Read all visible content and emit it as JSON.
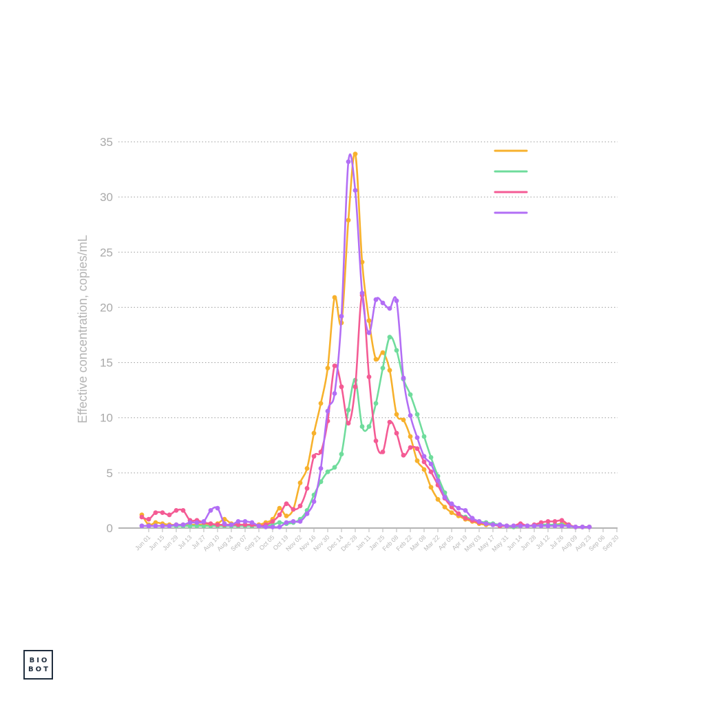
{
  "chart_data": {
    "type": "line",
    "title": "",
    "xlabel": "",
    "ylabel": "Effective concentration, copies/mL",
    "ylim": [
      0,
      35
    ],
    "yticks": [
      0,
      5,
      10,
      15,
      20,
      25,
      30,
      35
    ],
    "grid": true,
    "legend_position": "top-right",
    "x_tick_labels": [
      "Jun 01",
      "Jun 15",
      "Jun 29",
      "Jul 13",
      "Jul 27",
      "Aug 10",
      "Aug 24",
      "Sep 07",
      "Sep 21",
      "Oct 05",
      "Oct 19",
      "Nov 02",
      "Nov 16",
      "Nov 30",
      "Dec 14",
      "Dec 28",
      "Jan 11",
      "Jan 25",
      "Feb 08",
      "Feb 22",
      "Mar 08",
      "Mar 22",
      "Apr 05",
      "Apr 19",
      "May 03",
      "May 17",
      "May 31",
      "Jun 14",
      "Jun 28",
      "Jul 12",
      "Jul 26",
      "Aug 09",
      "Aug 23",
      "Sep 06",
      "Sep 20"
    ],
    "x_unit": "weekly index (0 = Jun 01, 1 step = 1 week)",
    "series": [
      {
        "name": "",
        "color": "#f7b12c",
        "points": [
          [
            0,
            1.2
          ],
          [
            1,
            0.3
          ],
          [
            2,
            0.5
          ],
          [
            3,
            0.4
          ],
          [
            4,
            0.3
          ],
          [
            5,
            0.3
          ],
          [
            6,
            0.3
          ],
          [
            7,
            0.3
          ],
          [
            8,
            0.3
          ],
          [
            9,
            0.3
          ],
          [
            10,
            0.3
          ],
          [
            11,
            0.4
          ],
          [
            12,
            0.8
          ],
          [
            13,
            0.4
          ],
          [
            14,
            0.3
          ],
          [
            15,
            0.3
          ],
          [
            16,
            0.2
          ],
          [
            17,
            0.3
          ],
          [
            18,
            0.5
          ],
          [
            19,
            0.8
          ],
          [
            20,
            1.8
          ],
          [
            21,
            1.1
          ],
          [
            22,
            1.7
          ],
          [
            23,
            4.1
          ],
          [
            24,
            5.4
          ],
          [
            25,
            8.6
          ],
          [
            26,
            11.3
          ],
          [
            27,
            14.5
          ],
          [
            28,
            20.9
          ],
          [
            29,
            18.6
          ],
          [
            30,
            27.9
          ],
          [
            31,
            33.9
          ],
          [
            32,
            24.1
          ],
          [
            33,
            18.8
          ],
          [
            34,
            15.3
          ],
          [
            35,
            15.9
          ],
          [
            36,
            14.3
          ],
          [
            37,
            10.3
          ],
          [
            38,
            9.8
          ],
          [
            39,
            8.3
          ],
          [
            40,
            6.1
          ],
          [
            41,
            5.3
          ],
          [
            42,
            3.7
          ],
          [
            43,
            2.6
          ],
          [
            44,
            1.9
          ],
          [
            45,
            1.4
          ],
          [
            46,
            1.1
          ],
          [
            47,
            0.8
          ],
          [
            48,
            0.6
          ],
          [
            49,
            0.4
          ],
          [
            50,
            0.3
          ],
          [
            51,
            0.3
          ],
          [
            52,
            0.2
          ],
          [
            53,
            0.2
          ],
          [
            54,
            0.1
          ],
          [
            55,
            0.2
          ],
          [
            56,
            0.2
          ],
          [
            57,
            0.2
          ],
          [
            58,
            0.3
          ],
          [
            59,
            0.3
          ],
          [
            60,
            0.3
          ],
          [
            61,
            0.4
          ],
          [
            62,
            0.3
          ],
          [
            63,
            0.1
          ],
          [
            64,
            0.1
          ],
          [
            65,
            0.1
          ]
        ]
      },
      {
        "name": "",
        "color": "#6fdc9c",
        "points": [
          [
            0,
            0.2
          ],
          [
            1,
            0.2
          ],
          [
            2,
            0.2
          ],
          [
            3,
            0.2
          ],
          [
            4,
            0.2
          ],
          [
            5,
            0.2
          ],
          [
            6,
            0.2
          ],
          [
            7,
            0.2
          ],
          [
            8,
            0.2
          ],
          [
            9,
            0.2
          ],
          [
            10,
            0.2
          ],
          [
            11,
            0.2
          ],
          [
            12,
            0.2
          ],
          [
            13,
            0.2
          ],
          [
            14,
            0.2
          ],
          [
            15,
            0.2
          ],
          [
            16,
            0.2
          ],
          [
            17,
            0.2
          ],
          [
            18,
            0.2
          ],
          [
            19,
            0.3
          ],
          [
            20,
            0.5
          ],
          [
            21,
            0.4
          ],
          [
            22,
            0.5
          ],
          [
            23,
            0.8
          ],
          [
            24,
            1.6
          ],
          [
            25,
            3.0
          ],
          [
            26,
            4.2
          ],
          [
            27,
            5.1
          ],
          [
            28,
            5.5
          ],
          [
            29,
            6.7
          ],
          [
            30,
            10.7
          ],
          [
            31,
            13.4
          ],
          [
            32,
            9.2
          ],
          [
            33,
            9.2
          ],
          [
            34,
            11.3
          ],
          [
            35,
            14.5
          ],
          [
            36,
            17.3
          ],
          [
            37,
            16.1
          ],
          [
            38,
            13.5
          ],
          [
            39,
            12.1
          ],
          [
            40,
            10.3
          ],
          [
            41,
            8.3
          ],
          [
            42,
            6.4
          ],
          [
            43,
            4.7
          ],
          [
            44,
            3.2
          ],
          [
            45,
            2.0
          ],
          [
            46,
            1.3
          ],
          [
            47,
            1.0
          ],
          [
            48,
            0.8
          ],
          [
            49,
            0.6
          ],
          [
            50,
            0.5
          ],
          [
            51,
            0.4
          ],
          [
            52,
            0.3
          ],
          [
            53,
            0.2
          ],
          [
            54,
            0.1
          ],
          [
            55,
            0.2
          ],
          [
            56,
            0.2
          ],
          [
            57,
            0.2
          ],
          [
            58,
            0.3
          ],
          [
            59,
            0.3
          ],
          [
            60,
            0.3
          ],
          [
            61,
            0.3
          ],
          [
            62,
            0.2
          ],
          [
            63,
            0.1
          ],
          [
            64,
            0.1
          ],
          [
            65,
            0.1
          ]
        ]
      },
      {
        "name": "",
        "color": "#f45b94",
        "points": [
          [
            0,
            1.0
          ],
          [
            1,
            0.8
          ],
          [
            2,
            1.4
          ],
          [
            3,
            1.4
          ],
          [
            4,
            1.2
          ],
          [
            5,
            1.6
          ],
          [
            6,
            1.6
          ],
          [
            7,
            0.7
          ],
          [
            8,
            0.7
          ],
          [
            9,
            0.5
          ],
          [
            10,
            0.4
          ],
          [
            11,
            0.3
          ],
          [
            12,
            0.3
          ],
          [
            13,
            0.3
          ],
          [
            14,
            0.3
          ],
          [
            15,
            0.3
          ],
          [
            16,
            0.3
          ],
          [
            17,
            0.2
          ],
          [
            18,
            0.3
          ],
          [
            19,
            0.6
          ],
          [
            20,
            1.2
          ],
          [
            21,
            2.2
          ],
          [
            22,
            1.7
          ],
          [
            23,
            2.0
          ],
          [
            24,
            3.6
          ],
          [
            25,
            6.5
          ],
          [
            26,
            6.9
          ],
          [
            27,
            9.7
          ],
          [
            28,
            14.7
          ],
          [
            29,
            12.8
          ],
          [
            30,
            9.5
          ],
          [
            31,
            12.8
          ],
          [
            32,
            21.1
          ],
          [
            33,
            13.7
          ],
          [
            34,
            7.9
          ],
          [
            35,
            6.9
          ],
          [
            36,
            9.6
          ],
          [
            37,
            8.6
          ],
          [
            38,
            6.6
          ],
          [
            39,
            7.3
          ],
          [
            40,
            7.2
          ],
          [
            41,
            6.0
          ],
          [
            42,
            5.1
          ],
          [
            43,
            3.9
          ],
          [
            44,
            2.7
          ],
          [
            45,
            1.9
          ],
          [
            46,
            1.3
          ],
          [
            47,
            0.9
          ],
          [
            48,
            0.7
          ],
          [
            49,
            0.5
          ],
          [
            50,
            0.4
          ],
          [
            51,
            0.3
          ],
          [
            52,
            0.2
          ],
          [
            53,
            0.2
          ],
          [
            54,
            0.2
          ],
          [
            55,
            0.4
          ],
          [
            56,
            0.2
          ],
          [
            57,
            0.3
          ],
          [
            58,
            0.5
          ],
          [
            59,
            0.6
          ],
          [
            60,
            0.6
          ],
          [
            61,
            0.7
          ],
          [
            62,
            0.3
          ],
          [
            63,
            0.1
          ],
          [
            64,
            0.1
          ],
          [
            65,
            0.1
          ]
        ]
      },
      {
        "name": "",
        "color": "#b26ef5",
        "points": [
          [
            0,
            0.2
          ],
          [
            1,
            0.2
          ],
          [
            2,
            0.2
          ],
          [
            3,
            0.2
          ],
          [
            4,
            0.2
          ],
          [
            5,
            0.3
          ],
          [
            6,
            0.3
          ],
          [
            7,
            0.5
          ],
          [
            8,
            0.5
          ],
          [
            9,
            0.6
          ],
          [
            10,
            1.6
          ],
          [
            11,
            1.8
          ],
          [
            12,
            0.4
          ],
          [
            13,
            0.3
          ],
          [
            14,
            0.6
          ],
          [
            15,
            0.6
          ],
          [
            16,
            0.5
          ],
          [
            17,
            0.2
          ],
          [
            18,
            0.1
          ],
          [
            19,
            0.1
          ],
          [
            20,
            0.1
          ],
          [
            21,
            0.5
          ],
          [
            22,
            0.6
          ],
          [
            23,
            0.6
          ],
          [
            24,
            1.3
          ],
          [
            25,
            2.4
          ],
          [
            26,
            5.4
          ],
          [
            27,
            10.6
          ],
          [
            28,
            12.2
          ],
          [
            29,
            19.2
          ],
          [
            30,
            33.2
          ],
          [
            31,
            30.6
          ],
          [
            32,
            21.3
          ],
          [
            33,
            17.7
          ],
          [
            34,
            20.7
          ],
          [
            35,
            20.4
          ],
          [
            36,
            19.9
          ],
          [
            37,
            20.6
          ],
          [
            38,
            13.6
          ],
          [
            39,
            10.2
          ],
          [
            40,
            8.2
          ],
          [
            41,
            6.5
          ],
          [
            42,
            5.8
          ],
          [
            43,
            4.3
          ],
          [
            44,
            2.8
          ],
          [
            45,
            2.2
          ],
          [
            46,
            1.8
          ],
          [
            47,
            1.6
          ],
          [
            48,
            0.9
          ],
          [
            49,
            0.6
          ],
          [
            50,
            0.4
          ],
          [
            51,
            0.3
          ],
          [
            52,
            0.3
          ],
          [
            53,
            0.2
          ],
          [
            54,
            0.2
          ],
          [
            55,
            0.2
          ],
          [
            56,
            0.2
          ],
          [
            57,
            0.2
          ],
          [
            58,
            0.2
          ],
          [
            59,
            0.2
          ],
          [
            60,
            0.2
          ],
          [
            61,
            0.2
          ],
          [
            62,
            0.2
          ],
          [
            63,
            0.1
          ],
          [
            64,
            0.1
          ],
          [
            65,
            0.1
          ]
        ]
      }
    ]
  },
  "logo": {
    "line1": "BIO",
    "line2": "BOT"
  }
}
